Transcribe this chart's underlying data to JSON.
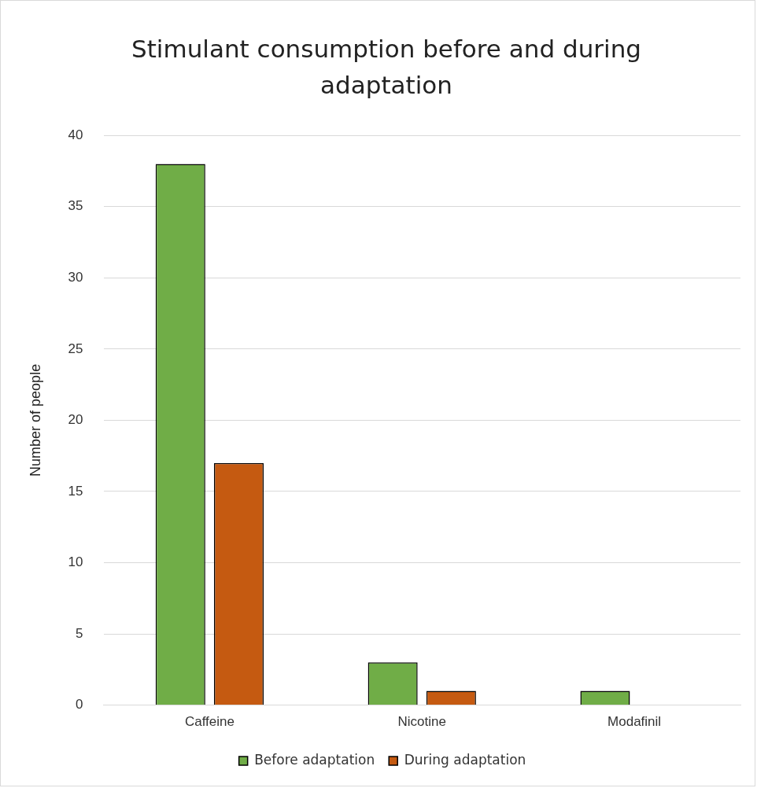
{
  "chart_data": {
    "type": "bar",
    "title": "Stimulant consumption before and during adaptation",
    "ylabel": "Number of people",
    "categories": [
      "Caffeine",
      "Nicotine",
      "Modafinil"
    ],
    "series": [
      {
        "name": "Before adaptation",
        "color": "#70ad47",
        "values": [
          38,
          3,
          1
        ]
      },
      {
        "name": "During adaptation",
        "color": "#c55a11",
        "values": [
          17,
          1,
          0
        ]
      }
    ],
    "ylim": [
      0,
      40
    ],
    "yticks": [
      0,
      5,
      10,
      15,
      20,
      25,
      30,
      35,
      40
    ],
    "grid": "y",
    "legend": "bottom"
  }
}
